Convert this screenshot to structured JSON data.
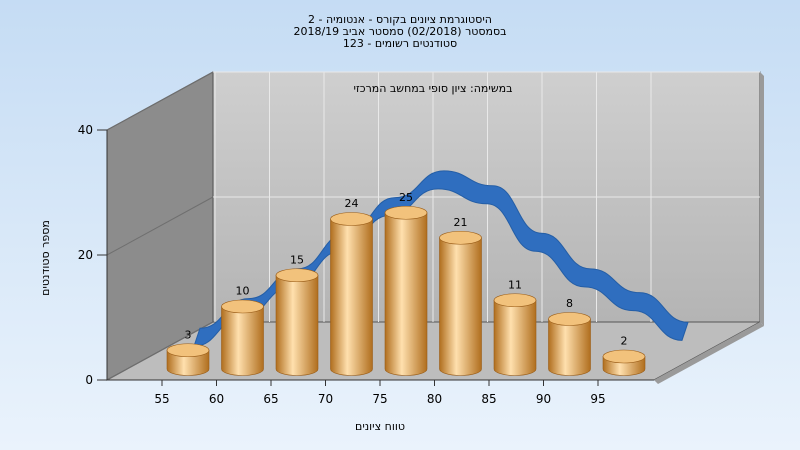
{
  "chart_data": {
    "type": "bar",
    "title": "היסטוגרמת ציונים בקורס - אנטומיה - 2",
    "subtitle_lines": [
      "בסמסטר (02/2018) סמסטר אביב 2018/19",
      "123 - סטודנטים רשומים"
    ],
    "inner_label": "במשימה: ציון סופי במחשב המרכזי",
    "xlabel": "טווח ציונים",
    "ylabel": "מספר סטודנטים",
    "x_ticks": [
      "55",
      "60",
      "65",
      "70",
      "75",
      "80",
      "85",
      "90",
      "95"
    ],
    "y_ticks": [
      "0",
      "20",
      "40"
    ],
    "ylim": [
      0,
      40
    ],
    "categories": [
      "55-60",
      "60-65",
      "65-70",
      "70-75",
      "75-80",
      "80-85",
      "85-90",
      "90-95",
      "95-100"
    ],
    "values": [
      3,
      10,
      15,
      24,
      25,
      21,
      11,
      8,
      2
    ],
    "curve_y": [
      4,
      9,
      14,
      20,
      26,
      30.5,
      28,
      20,
      14,
      10,
      5
    ],
    "grid": true,
    "colors": {
      "bar": "#e6a24c",
      "bar_light": "#ffe0ae",
      "bar_dark": "#b06e1e",
      "curve": "#2f6ebf",
      "plot_back": "#c9c9c9",
      "plot_side": "#8c8c8c",
      "plot_floor": "#bdbdbd"
    }
  }
}
